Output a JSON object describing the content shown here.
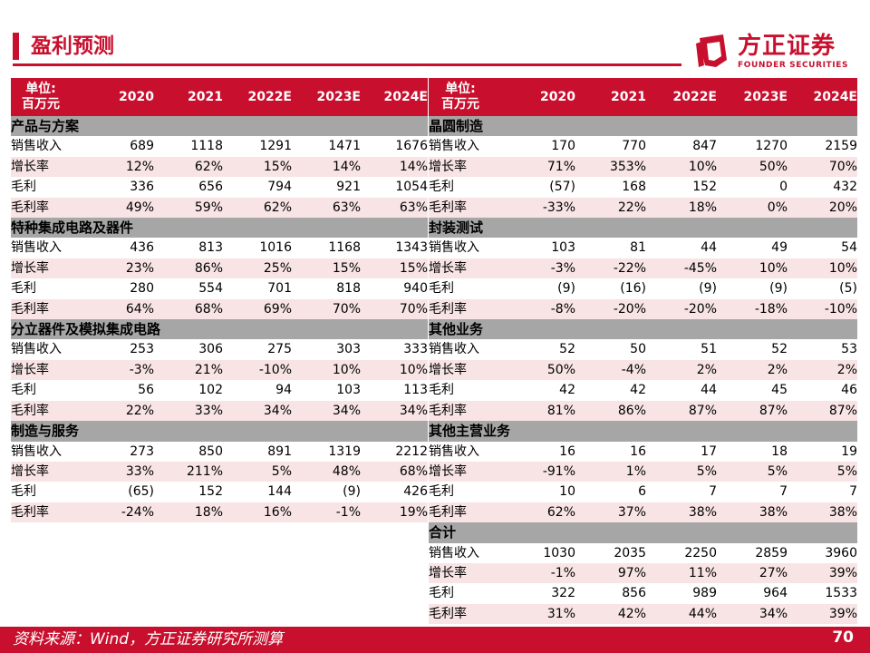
{
  "header": {
    "title": "盈利预测",
    "logo_cn": "方正证券",
    "logo_en": "FOUNDER SECURITIES",
    "accent_color": "#c8102e"
  },
  "table_header": {
    "unit_line1": "单位:",
    "unit_line2": "百万元",
    "years": [
      "2020",
      "2021",
      "2022E",
      "2023E",
      "2024E"
    ]
  },
  "left_sections": [
    {
      "name": "产品与方案",
      "rows": [
        {
          "label": "销售收入",
          "values": [
            "689",
            "1118",
            "1291",
            "1471",
            "1676"
          ]
        },
        {
          "label": "增长率",
          "values": [
            "12%",
            "62%",
            "15%",
            "14%",
            "14%"
          ]
        },
        {
          "label": "毛利",
          "values": [
            "336",
            "656",
            "794",
            "921",
            "1054"
          ]
        },
        {
          "label": "毛利率",
          "values": [
            "49%",
            "59%",
            "62%",
            "63%",
            "63%"
          ]
        }
      ]
    },
    {
      "name": "特种集成电路及器件",
      "rows": [
        {
          "label": "销售收入",
          "values": [
            "436",
            "813",
            "1016",
            "1168",
            "1343"
          ]
        },
        {
          "label": "增长率",
          "values": [
            "23%",
            "86%",
            "25%",
            "15%",
            "15%"
          ]
        },
        {
          "label": "毛利",
          "values": [
            "280",
            "554",
            "701",
            "818",
            "940"
          ]
        },
        {
          "label": "毛利率",
          "values": [
            "64%",
            "68%",
            "69%",
            "70%",
            "70%"
          ]
        }
      ]
    },
    {
      "name": "分立器件及模拟集成电路",
      "rows": [
        {
          "label": "销售收入",
          "values": [
            "253",
            "306",
            "275",
            "303",
            "333"
          ]
        },
        {
          "label": "增长率",
          "values": [
            "-3%",
            "21%",
            "-10%",
            "10%",
            "10%"
          ]
        },
        {
          "label": "毛利",
          "values": [
            "56",
            "102",
            "94",
            "103",
            "113"
          ]
        },
        {
          "label": "毛利率",
          "values": [
            "22%",
            "33%",
            "34%",
            "34%",
            "34%"
          ]
        }
      ]
    },
    {
      "name": "制造与服务",
      "rows": [
        {
          "label": "销售收入",
          "values": [
            "273",
            "850",
            "891",
            "1319",
            "2212"
          ]
        },
        {
          "label": "增长率",
          "values": [
            "33%",
            "211%",
            "5%",
            "48%",
            "68%"
          ]
        },
        {
          "label": "毛利",
          "values": [
            "(65)",
            "152",
            "144",
            "(9)",
            "426"
          ]
        },
        {
          "label": "毛利率",
          "values": [
            "-24%",
            "18%",
            "16%",
            "-1%",
            "19%"
          ]
        }
      ]
    }
  ],
  "right_sections": [
    {
      "name": "晶圆制造",
      "rows": [
        {
          "label": "销售收入",
          "values": [
            "170",
            "770",
            "847",
            "1270",
            "2159"
          ]
        },
        {
          "label": "增长率",
          "values": [
            "71%",
            "353%",
            "10%",
            "50%",
            "70%"
          ]
        },
        {
          "label": "毛利",
          "values": [
            "(57)",
            "168",
            "152",
            "0",
            "432"
          ]
        },
        {
          "label": "毛利率",
          "values": [
            "-33%",
            "22%",
            "18%",
            "0%",
            "20%"
          ]
        }
      ]
    },
    {
      "name": "封装测试",
      "rows": [
        {
          "label": "销售收入",
          "values": [
            "103",
            "81",
            "44",
            "49",
            "54"
          ]
        },
        {
          "label": "增长率",
          "values": [
            "-3%",
            "-22%",
            "-45%",
            "10%",
            "10%"
          ]
        },
        {
          "label": "毛利",
          "values": [
            "(9)",
            "(16)",
            "(9)",
            "(9)",
            "(5)"
          ]
        },
        {
          "label": "毛利率",
          "values": [
            "-8%",
            "-20%",
            "-20%",
            "-18%",
            "-10%"
          ]
        }
      ]
    },
    {
      "name": "其他业务",
      "rows": [
        {
          "label": "销售收入",
          "values": [
            "52",
            "50",
            "51",
            "52",
            "53"
          ]
        },
        {
          "label": "增长率",
          "values": [
            "50%",
            "-4%",
            "2%",
            "2%",
            "2%"
          ]
        },
        {
          "label": "毛利",
          "values": [
            "42",
            "42",
            "44",
            "45",
            "46"
          ]
        },
        {
          "label": "毛利率",
          "values": [
            "81%",
            "86%",
            "87%",
            "87%",
            "87%"
          ]
        }
      ]
    },
    {
      "name": "其他主营业务",
      "rows": [
        {
          "label": "销售收入",
          "values": [
            "16",
            "16",
            "17",
            "18",
            "19"
          ]
        },
        {
          "label": "增长率",
          "values": [
            "-91%",
            "1%",
            "5%",
            "5%",
            "5%"
          ]
        },
        {
          "label": "毛利",
          "values": [
            "10",
            "6",
            "7",
            "7",
            "7"
          ]
        },
        {
          "label": "毛利率",
          "values": [
            "62%",
            "37%",
            "38%",
            "38%",
            "38%"
          ]
        }
      ]
    },
    {
      "name": "合计",
      "rows": [
        {
          "label": "销售收入",
          "values": [
            "1030",
            "2035",
            "2250",
            "2859",
            "3960"
          ]
        },
        {
          "label": "增长率",
          "values": [
            "-1%",
            "97%",
            "11%",
            "27%",
            "39%"
          ]
        },
        {
          "label": "毛利",
          "values": [
            "322",
            "856",
            "989",
            "964",
            "1533"
          ]
        },
        {
          "label": "毛利率",
          "values": [
            "31%",
            "42%",
            "44%",
            "34%",
            "39%"
          ]
        }
      ]
    }
  ],
  "footer": {
    "source": "资料来源：Wind，方正证券研究所测算",
    "page": "70"
  }
}
